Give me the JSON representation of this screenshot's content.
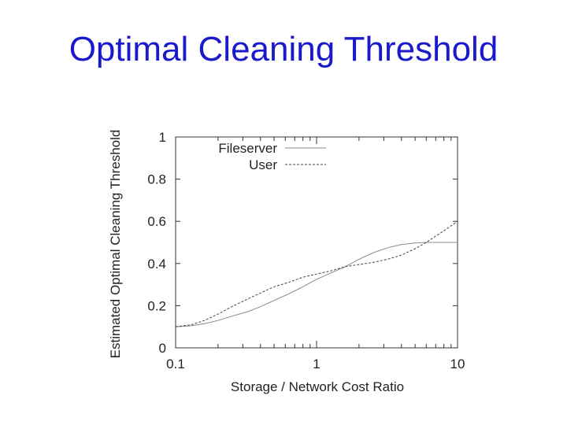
{
  "slide": {
    "title": "Optimal Cleaning Threshold"
  },
  "chart_data": {
    "type": "line",
    "title": "",
    "xlabel": "Storage / Network Cost Ratio",
    "ylabel": "Estimated Optimal Cleaning Threshold",
    "xscale": "log",
    "xlim": [
      0.1,
      10
    ],
    "ylim": [
      0,
      1
    ],
    "xticks": [
      0.1,
      1,
      10
    ],
    "xtick_labels": [
      "0.1",
      "1",
      "10"
    ],
    "yticks": [
      0,
      0.2,
      0.4,
      0.6,
      0.8,
      1
    ],
    "ytick_labels": [
      "0",
      "0.2",
      "0.4",
      "0.6",
      "0.8",
      "1"
    ],
    "grid": false,
    "legend_position": "top-left",
    "series": [
      {
        "name": "Fileserver",
        "style": "solid",
        "color": "#888888",
        "x": [
          0.1,
          0.13,
          0.16,
          0.2,
          0.25,
          0.32,
          0.4,
          0.5,
          0.63,
          0.8,
          1.0,
          1.26,
          1.6,
          2.0,
          2.5,
          3.2,
          4.0,
          5.0,
          6.0,
          7.0,
          8.0,
          10.0
        ],
        "y": [
          0.1,
          0.105,
          0.115,
          0.13,
          0.15,
          0.17,
          0.195,
          0.225,
          0.255,
          0.29,
          0.325,
          0.355,
          0.385,
          0.42,
          0.45,
          0.475,
          0.49,
          0.497,
          0.5,
          0.5,
          0.5,
          0.5
        ]
      },
      {
        "name": "User",
        "style": "dashed",
        "color": "#444444",
        "x": [
          0.1,
          0.13,
          0.16,
          0.2,
          0.25,
          0.32,
          0.4,
          0.5,
          0.63,
          0.8,
          1.0,
          1.26,
          1.6,
          2.0,
          2.5,
          3.2,
          4.0,
          5.0,
          6.0,
          7.0,
          8.0,
          10.0
        ],
        "y": [
          0.1,
          0.11,
          0.13,
          0.16,
          0.195,
          0.23,
          0.26,
          0.29,
          0.31,
          0.335,
          0.35,
          0.365,
          0.385,
          0.395,
          0.405,
          0.42,
          0.44,
          0.47,
          0.5,
          0.53,
          0.555,
          0.6
        ]
      }
    ]
  }
}
